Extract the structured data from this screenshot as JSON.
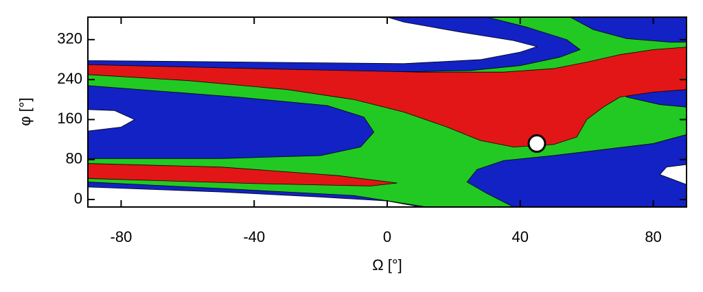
{
  "chart_data": {
    "type": "contour",
    "xlabel": "Ω [°]",
    "ylabel": "φ [°]",
    "xlim": [
      -90,
      90
    ],
    "ylim": [
      -15,
      365
    ],
    "xticks": [
      -80,
      -40,
      0,
      40,
      80
    ],
    "yticks": [
      0,
      80,
      160,
      240,
      320
    ],
    "regions": [
      {
        "color": "#1222c4",
        "x": [
          -90,
          90,
          90,
          -90
        ],
        "y": [
          -15,
          -15,
          365,
          365
        ]
      },
      {
        "color": "#ffffff",
        "x": [
          -90,
          -90,
          -50,
          -20,
          0,
          10
        ],
        "y": [
          -15,
          25,
          15,
          5,
          -3,
          -15
        ]
      },
      {
        "color": "#ffffff",
        "x": [
          -90,
          -90,
          -40,
          5,
          28,
          40,
          45,
          38,
          22,
          5,
          0
        ],
        "y": [
          365,
          278,
          275,
          272,
          280,
          295,
          306,
          318,
          335,
          355,
          365
        ]
      },
      {
        "color": "#ffffff",
        "x": [
          -90,
          -82,
          -76,
          -80,
          -90
        ],
        "y": [
          180,
          178,
          160,
          145,
          137
        ]
      },
      {
        "color": "#ffffff",
        "x": [
          90,
          84,
          82,
          86,
          90
        ],
        "y": [
          70,
          65,
          50,
          40,
          30
        ]
      },
      {
        "color": "#22c922",
        "x": [
          30,
          55,
          62,
          72,
          85,
          90,
          90,
          80,
          65,
          50,
          35,
          27,
          24,
          30,
          38,
          12,
          -10,
          -50,
          -90,
          -90,
          -50,
          -20,
          -8,
          -4,
          -7,
          -18,
          -45,
          -90,
          -90,
          -40,
          0,
          25,
          40,
          52,
          58,
          54,
          42
        ],
        "y": [
          365,
          365,
          340,
          322,
          315,
          315,
          130,
          112,
          100,
          88,
          78,
          60,
          35,
          12,
          -15,
          -15,
          8,
          22,
          35,
          82,
          82,
          88,
          105,
          135,
          165,
          188,
          205,
          228,
          268,
          262,
          255,
          258,
          268,
          285,
          300,
          320,
          345
        ]
      },
      {
        "color": "#1222c4",
        "x": [
          90,
          78,
          70,
          72,
          82,
          90
        ],
        "y": [
          245,
          240,
          225,
          205,
          190,
          185
        ]
      },
      {
        "color": "#e21616",
        "x": [
          -90,
          -50,
          -15,
          3,
          -5,
          -40,
          -90
        ],
        "y": [
          72,
          65,
          48,
          33,
          27,
          32,
          42
        ]
      },
      {
        "color": "#e21616",
        "x": [
          -90,
          -40,
          10,
          35,
          50,
          60,
          70,
          80,
          90,
          90,
          80,
          70,
          65,
          60,
          57,
          50,
          38,
          28,
          18,
          5,
          -10,
          -30,
          -60,
          -90
        ],
        "y": [
          270,
          262,
          255,
          255,
          262,
          275,
          290,
          300,
          305,
          220,
          215,
          205,
          185,
          160,
          125,
          110,
          105,
          118,
          145,
          175,
          200,
          220,
          238,
          250
        ]
      }
    ],
    "points": {
      "x": [
        45
      ],
      "y": [
        112
      ]
    }
  }
}
